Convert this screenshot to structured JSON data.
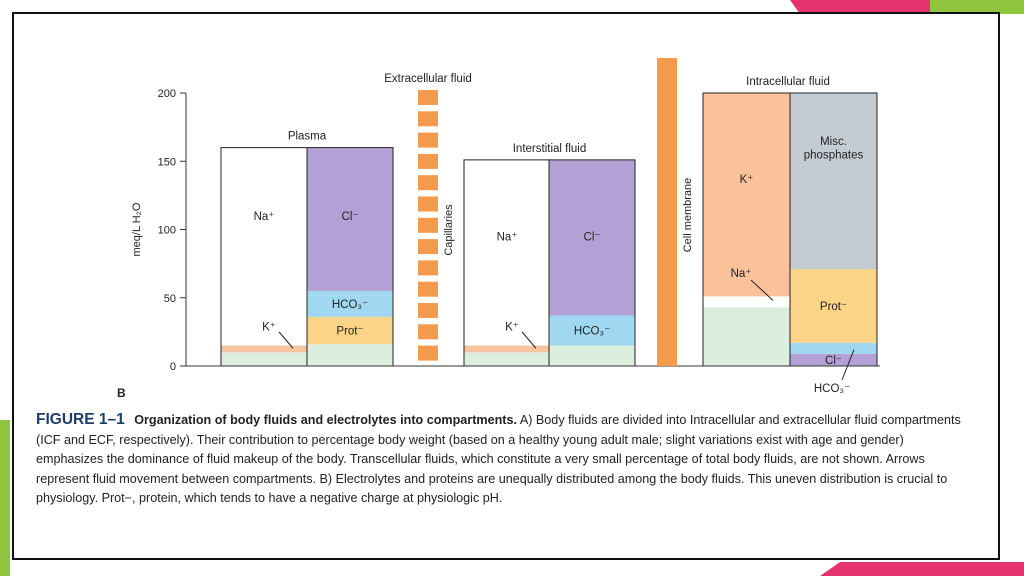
{
  "colors": {
    "background": "#ffffff",
    "na_white": "#ffffff",
    "cl": "#b3a0d4",
    "hco3": "#9fd8f0",
    "prot": "#fbd48a",
    "other_green": "#dceedd",
    "k_plasma": "#f7c4a0",
    "k_icf": "#f9c29a",
    "phosphates": "#c4ccd3",
    "capillary": "#f39a4c",
    "deco_green": "#8fc53f",
    "deco_pink": "#e6336e"
  },
  "panel_letter": "B",
  "caption": {
    "label": "FIGURE 1–1",
    "title": "Organization of body fluids and electrolytes into compartments.",
    "body": "A) Body fluids are divided into Intracellular and extracellular fluid compartments (ICF and ECF, respectively). Their contribution to percentage body weight (based on a healthy young adult male; slight variations exist with age and gender) emphasizes the dominance of fluid makeup of the body. Transcellular fluids, which constitute a very small percentage of total body fluids, are not shown. Arrows represent fluid movement between compartments. B) Electrolytes and proteins are unequally distributed among the body fluids. This uneven distribution is crucial to physiology. Prot−, protein, which tends to have a negative charge at physiologic pH."
  },
  "chart_data": {
    "type": "bar",
    "subtype": "stacked-columns",
    "ylabel": "meq/L H₂O",
    "ylim": [
      0,
      200
    ],
    "yticks": [
      0,
      50,
      100,
      150,
      200
    ],
    "region_labels": {
      "extracellular": "Extracellular fluid",
      "intracellular": "Intracellular fluid",
      "capillaries": "Capillaries",
      "cell_membrane": "Cell membrane"
    },
    "compartments": [
      {
        "name": "Plasma",
        "columns": [
          {
            "segments": [
              {
                "label": "",
                "value": 10,
                "color_key": "other_green"
              },
              {
                "label": "K⁺",
                "value": 5,
                "color_key": "k_plasma"
              },
              {
                "label": "Na⁺",
                "value": 145,
                "color_key": "na_white"
              }
            ]
          },
          {
            "segments": [
              {
                "label": "",
                "value": 16,
                "color_key": "other_green"
              },
              {
                "label": "Prot⁻",
                "value": 20,
                "color_key": "prot"
              },
              {
                "label": "HCO₃⁻",
                "value": 19,
                "color_key": "hco3"
              },
              {
                "label": "Cl⁻",
                "value": 105,
                "color_key": "cl"
              }
            ]
          }
        ]
      },
      {
        "name": "Interstitial fluid",
        "columns": [
          {
            "segments": [
              {
                "label": "",
                "value": 10,
                "color_key": "other_green"
              },
              {
                "label": "K⁺",
                "value": 5,
                "color_key": "k_plasma"
              },
              {
                "label": "Na⁺",
                "value": 136,
                "color_key": "na_white"
              }
            ]
          },
          {
            "segments": [
              {
                "label": "",
                "value": 15,
                "color_key": "other_green"
              },
              {
                "label": "HCO₃⁻",
                "value": 22,
                "color_key": "hco3"
              },
              {
                "label": "Cl⁻",
                "value": 114,
                "color_key": "cl"
              }
            ]
          }
        ]
      },
      {
        "name": "Intracellular fluid",
        "columns": [
          {
            "segments": [
              {
                "label": "",
                "value": 43,
                "color_key": "other_green"
              },
              {
                "label": "Na⁺",
                "value": 8,
                "color_key": "na_white"
              },
              {
                "label": "K⁺",
                "value": 149,
                "color_key": "k_icf"
              }
            ]
          },
          {
            "segments": [
              {
                "label": "Cl⁻",
                "value": 9,
                "color_key": "cl"
              },
              {
                "label": "HCO₃⁻",
                "value": 8,
                "color_key": "hco3"
              },
              {
                "label": "Prot⁻",
                "value": 54,
                "color_key": "prot"
              },
              {
                "label": "Misc. phosphates",
                "value": 129,
                "color_key": "phosphates"
              }
            ]
          }
        ]
      }
    ]
  }
}
